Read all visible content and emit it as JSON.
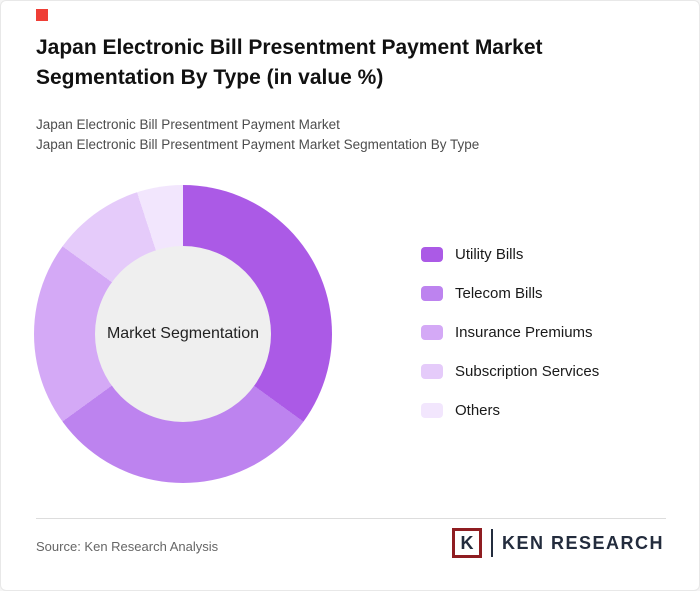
{
  "header": {
    "title": "Japan Electronic Bill Presentment Payment Market Segmentation By Type (in value %)",
    "subtitle1": "Japan Electronic Bill Presentment Payment Market",
    "subtitle2": "Japan Electronic Bill Presentment Payment Market Segmentation By Type"
  },
  "chart_data": {
    "type": "pie",
    "subtype": "donut",
    "title": "Japan Electronic Bill Presentment Payment Market Segmentation By Type (in value %)",
    "center_label": "Market Segmentation",
    "unit": "value %",
    "categories": [
      "Utility Bills",
      "Telecom Bills",
      "Insurance Premiums",
      "Subscription Services",
      "Others"
    ],
    "values": [
      35,
      30,
      20,
      10,
      5
    ],
    "colors": [
      "#ab5ae6",
      "#bd83ef",
      "#d4a9f6",
      "#e5cbfa",
      "#f2e6fd"
    ],
    "hole_color": "#efefef",
    "legend_position": "right",
    "start_angle_deg": 0
  },
  "footer": {
    "source": "Source: Ken Research Analysis",
    "logo_letter": "K",
    "logo_text": "KEN RESEARCH"
  },
  "accent_color": "#ef3e36"
}
